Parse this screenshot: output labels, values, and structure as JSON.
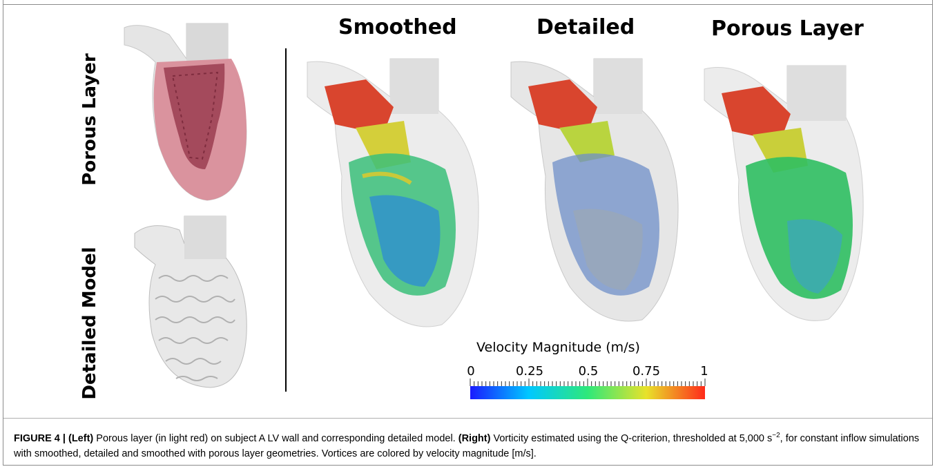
{
  "figure": {
    "left_labels": {
      "top": "Porous Layer",
      "bottom": "Detailed Model"
    },
    "column_titles": [
      "Smoothed",
      "Detailed",
      "Porous Layer"
    ],
    "colorbar": {
      "title": "Velocity Magnitude (m/s)",
      "ticks": [
        "0",
        "0.25",
        "0.5",
        "0.75",
        "1"
      ],
      "colors": [
        "#1a1aff",
        "#00c8ff",
        "#2ee87a",
        "#e8e22a",
        "#ff2a1a"
      ]
    }
  },
  "caption": {
    "figure_number": "FIGURE 4 |",
    "left_tag": "(Left)",
    "left_text": " Porous layer (in light red) on subject A LV wall and corresponding detailed model. ",
    "right_tag": "(Right)",
    "right_text_1": " Vorticity estimated using the Q-criterion, thresholded at 5,000 s",
    "superscript": "−2",
    "right_text_2": ", for constant inflow simulations with smoothed, detailed and smoothed with porous layer geometries. Vortices are colored by velocity magnitude [m/s]."
  }
}
